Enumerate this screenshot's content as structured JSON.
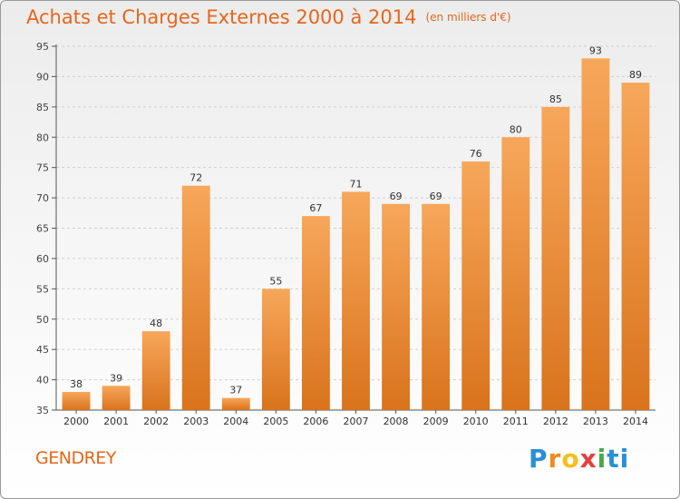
{
  "header": {
    "title": "Achats et Charges Externes 2000 à 2014",
    "subtitle": "(en milliers d'€)"
  },
  "footer": {
    "place": "GENDREY",
    "logo": [
      "P",
      "r",
      "o",
      "x",
      "i",
      "ti"
    ]
  },
  "colors": {
    "accent": "#e6661a",
    "bar_top": "#f7a75a",
    "bar_bottom": "#d9731c",
    "axis": "#555555"
  },
  "chart_data": {
    "type": "bar",
    "title": "Achats et Charges Externes 2000 à 2014",
    "subtitle": "(en milliers d'€)",
    "categories": [
      "2000",
      "2001",
      "2002",
      "2003",
      "2004",
      "2005",
      "2006",
      "2007",
      "2008",
      "2009",
      "2010",
      "2011",
      "2012",
      "2013",
      "2014"
    ],
    "values": [
      38,
      39,
      48,
      72,
      37,
      55,
      67,
      71,
      69,
      69,
      76,
      80,
      85,
      93,
      89
    ],
    "ylim": [
      35,
      95
    ],
    "yticks": [
      35,
      40,
      45,
      50,
      55,
      60,
      65,
      70,
      75,
      80,
      85,
      90,
      95
    ],
    "grid": true,
    "data_labels": true,
    "legend": "none"
  }
}
